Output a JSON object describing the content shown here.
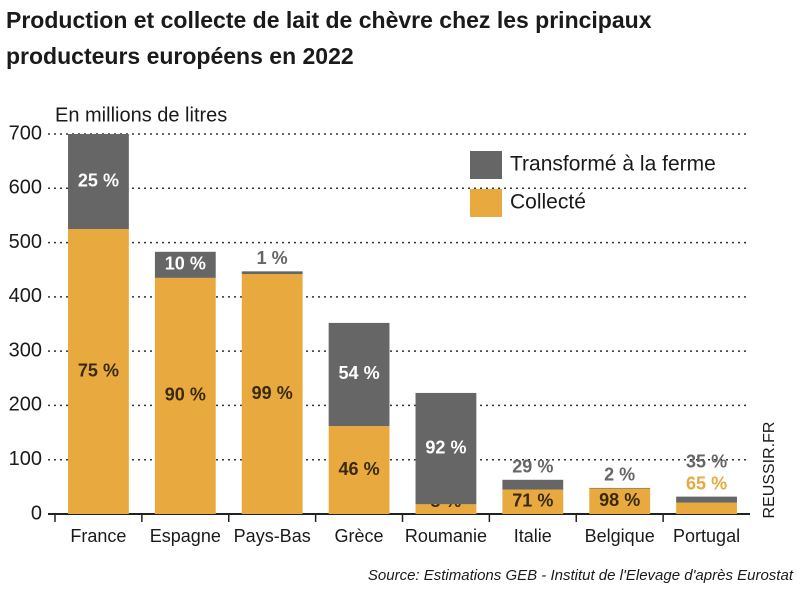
{
  "chart_data": {
    "type": "stacked_bar",
    "title": [
      "Production et collecte de lait de chèvre chez les principaux",
      "producteurs européens en 2022"
    ],
    "y_label": "En millions de litres",
    "categories": [
      "France",
      "Espagne",
      "Pays-Bas",
      "Grèce",
      "Roumanie",
      "Italie",
      "Belgique",
      "Portugal"
    ],
    "series": [
      {
        "name": "Collecté",
        "color": "#e8a93e",
        "label_color": "#3a2a10",
        "values": [
          525,
          435,
          442,
          162,
          18,
          45,
          47,
          21
        ],
        "share_labels": [
          "75 %",
          "90 %",
          "99 %",
          "46 %",
          "8 %",
          "71 %",
          "98 %",
          "65 %"
        ]
      },
      {
        "name": "Transformé à la ferme",
        "color": "#666666",
        "label_color": "#ffffff",
        "values": [
          175,
          48,
          5,
          190,
          205,
          18,
          1,
          11
        ],
        "share_labels": [
          "25 %",
          "10 %",
          "1 %",
          "54 %",
          "92 %",
          "29 %",
          "2 %",
          "35 %"
        ]
      }
    ],
    "ylim": [
      0,
      700
    ],
    "yticks": [
      0,
      100,
      200,
      300,
      400,
      500,
      600,
      700
    ],
    "grid": true,
    "source": "Source: Estimations GEB - Institut de l'Elevage d'après Eurostat",
    "credit": "REUSSIR.FR"
  }
}
